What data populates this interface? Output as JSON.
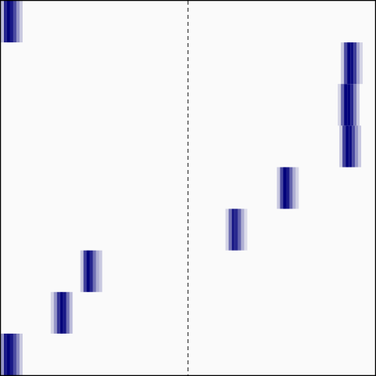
{
  "chart_data": {
    "type": "heatmap",
    "title": "",
    "xlabel": "",
    "ylabel": "",
    "grid": false,
    "legend": "none",
    "n_rows": 9,
    "n_cols": 240,
    "colors": {
      "background": "#fafafa",
      "cell": "#00007a",
      "divider": "#333333",
      "frame": "#000000"
    },
    "divider_at_col": 120,
    "rows": [
      {
        "row": 0,
        "profile": [
          0.25,
          0.85,
          1.0,
          0.9,
          0.7,
          0.4,
          0.2
        ],
        "start_col": 0
      },
      {
        "row": 1,
        "profile": [
          0.2,
          0.7,
          1.0,
          0.95,
          0.75,
          0.35,
          0.15
        ],
        "start_col": 218
      },
      {
        "row": 2,
        "profile": [
          0.15,
          0.6,
          1.0,
          1.0,
          0.85,
          0.5,
          0.2
        ],
        "start_col": 216
      },
      {
        "row": 3,
        "profile": [
          0.2,
          0.75,
          1.0,
          0.95,
          0.7,
          0.4,
          0.2
        ],
        "start_col": 217
      },
      {
        "row": 4,
        "profile": [
          0.2,
          0.7,
          1.0,
          0.9,
          0.6,
          0.3,
          0.15
        ],
        "start_col": 177
      },
      {
        "row": 5,
        "profile": [
          0.15,
          0.55,
          0.9,
          0.85,
          0.6,
          0.3,
          0.12
        ],
        "start_col": 144
      },
      {
        "row": 6,
        "profile": [
          0.2,
          0.75,
          1.0,
          0.85,
          0.55,
          0.3,
          0.2
        ],
        "start_col": 51
      },
      {
        "row": 7,
        "profile": [
          0.15,
          0.4,
          0.8,
          1.0,
          0.9,
          0.55,
          0.25
        ],
        "start_col": 32
      },
      {
        "row": 8,
        "profile": [
          0.4,
          0.9,
          1.0,
          0.9,
          0.7,
          0.45,
          0.2
        ],
        "start_col": 0
      }
    ]
  }
}
